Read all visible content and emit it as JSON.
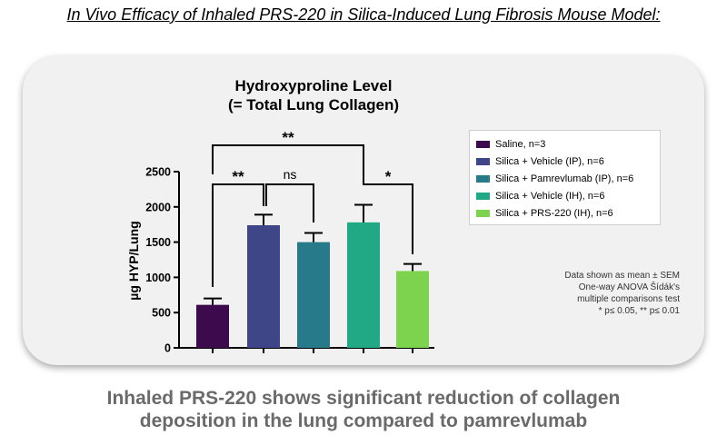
{
  "page_title": "In Vivo Efficacy of Inhaled PRS-220 in Silica-Induced Lung Fibrosis Mouse Model:",
  "footer": {
    "line1": "Inhaled PRS-220 shows significant reduction of collagen",
    "line2": "deposition in the lung compared to pamrevlumab"
  },
  "note": {
    "line1": "Data shown as mean ± SEM",
    "line2": "One-way ANOVA Šídák's",
    "line3": "multiple comparisons test",
    "line4": "* p≤ 0.05, ** p≤ 0.01"
  },
  "chart_data": {
    "type": "bar",
    "title_line1": "Hydroxyproline Level",
    "title_line2": "(= Total Lung Collagen)",
    "ylabel": "µg HYP/Lung",
    "ylim": [
      0,
      2500
    ],
    "yticks": [
      0,
      500,
      1000,
      1500,
      2000,
      2500
    ],
    "categories": [
      "Saline, n=3",
      "Silica + Vehicle (IP), n=6",
      "Silica + Pamrevlumab (IP), n=6",
      "Silica + Vehicle (IH), n=6",
      "Silica + PRS-220 (IH), n=6"
    ],
    "values": [
      610,
      1740,
      1500,
      1780,
      1090
    ],
    "sem": [
      90,
      150,
      130,
      250,
      100
    ],
    "colors": [
      "#3d0a4e",
      "#3e4688",
      "#277a8a",
      "#21a885",
      "#7ed34e"
    ],
    "significance": [
      {
        "from": 0,
        "to": 3,
        "label": "**"
      },
      {
        "from": 0,
        "to": 1,
        "label": "**"
      },
      {
        "from": 1,
        "to": 2,
        "label": "ns"
      },
      {
        "from": 3,
        "to": 4,
        "label": "*"
      }
    ],
    "legend_position": "right"
  }
}
